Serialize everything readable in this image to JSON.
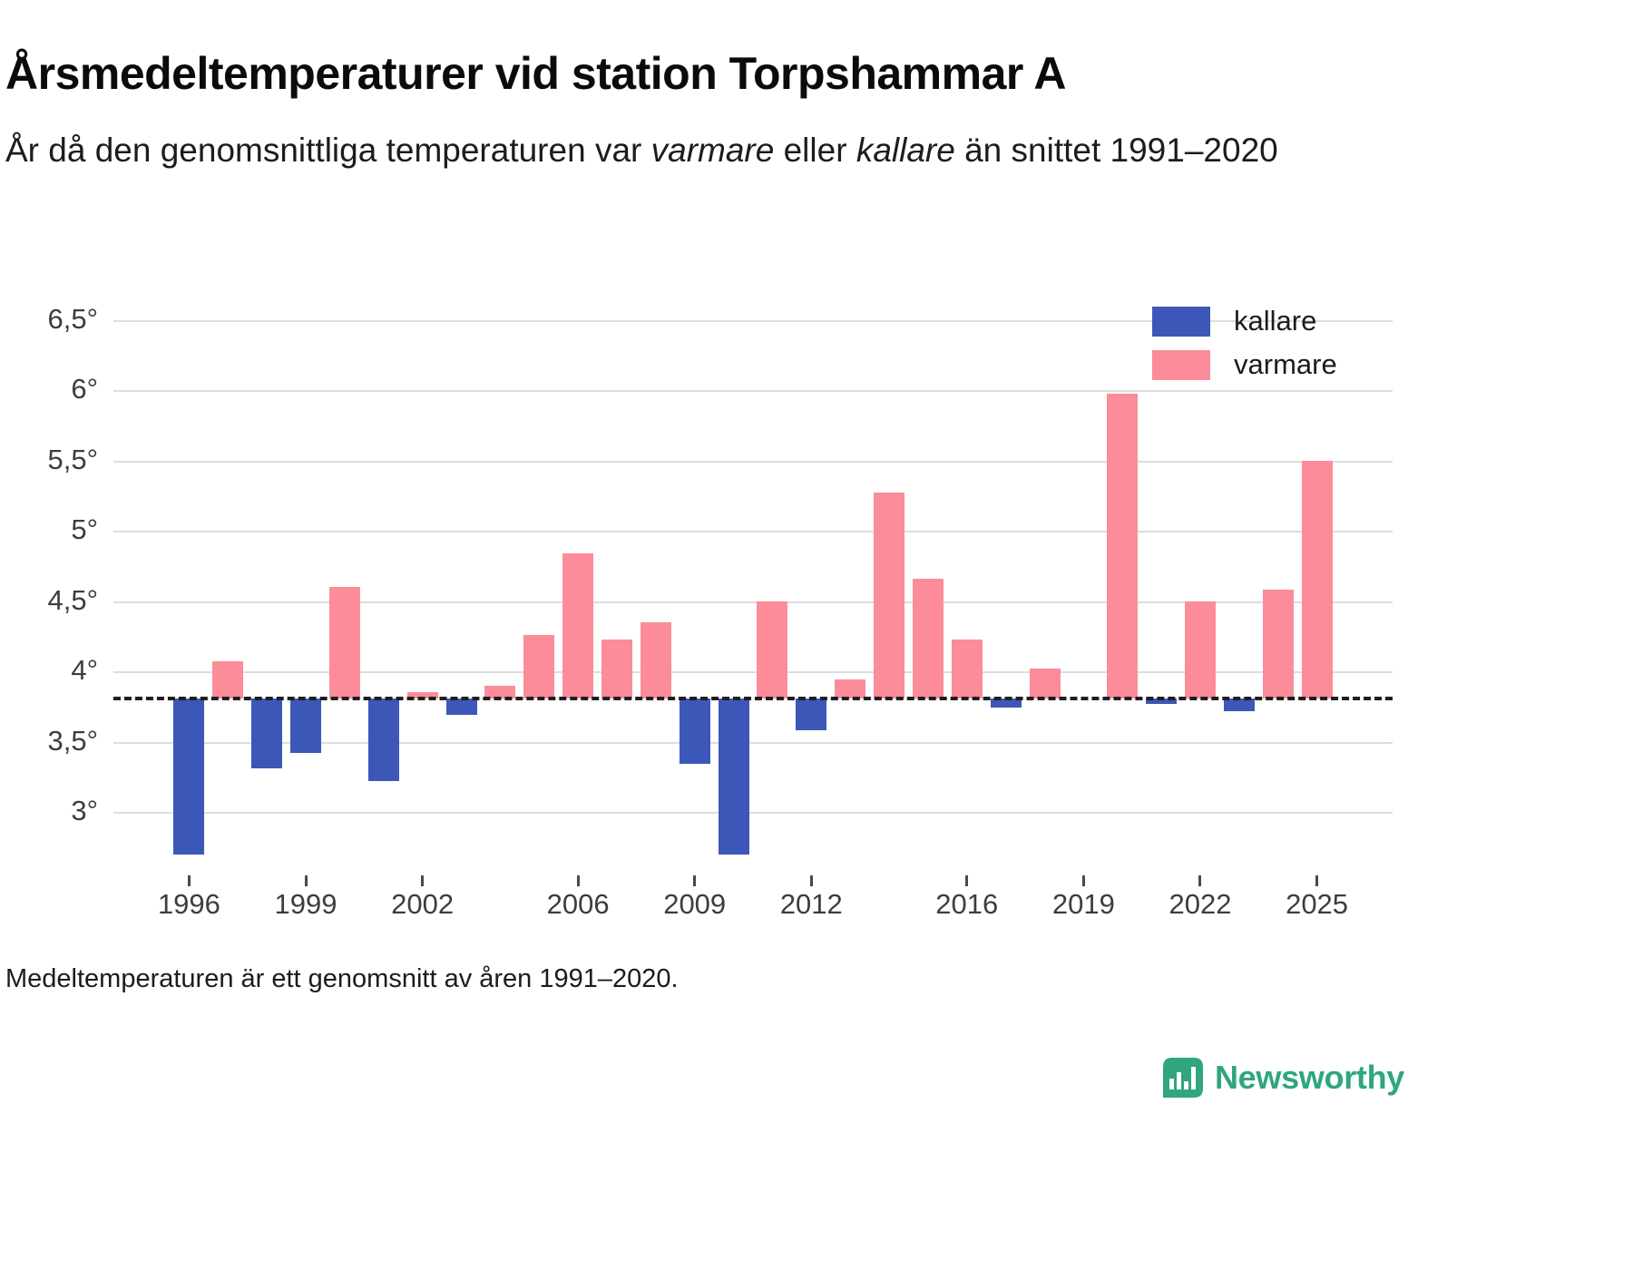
{
  "header": {
    "title": "Årsmedeltemperaturer vid station Torpshammar A",
    "subtitle_pre": "År då den genomsnittliga temperaturen var ",
    "subtitle_italic1": "varmare",
    "subtitle_mid": " eller ",
    "subtitle_italic2": "kallare",
    "subtitle_post": " än snittet 1991–2020"
  },
  "footer": {
    "note": "Medeltemperaturen är ett genomsnitt av åren 1991–2020.",
    "brand": "Newsworthy"
  },
  "colors": {
    "kallare": "#3d57b8",
    "varmare": "#fc8c99",
    "baseline": "#1f1f1f",
    "grid": "#dddddd",
    "brand_green": "#2fa67e"
  },
  "chart_data": {
    "type": "bar",
    "title": "Årsmedeltemperaturer vid station Torpshammar A",
    "ylabel": "",
    "xlabel": "",
    "unit": "°C",
    "baseline": 3.81,
    "baseline_meaning": "snittet 1991–2020",
    "ylim": [
      2.6,
      6.7
    ],
    "grid": true,
    "yticks": [
      3,
      3.5,
      4,
      4.5,
      5,
      5.5,
      6,
      6.5
    ],
    "ytick_labels": [
      "3°",
      "3,5°",
      "4°",
      "4,5°",
      "5°",
      "5,5°",
      "6°",
      "6,5°"
    ],
    "xtick_years": [
      1996,
      1999,
      2002,
      2006,
      2009,
      2012,
      2016,
      2019,
      2022,
      2025
    ],
    "years": [
      1996,
      1997,
      1998,
      1999,
      2000,
      2001,
      2002,
      2003,
      2004,
      2005,
      2006,
      2007,
      2008,
      2009,
      2010,
      2011,
      2012,
      2013,
      2014,
      2015,
      2016,
      2017,
      2018,
      2019,
      2020,
      2021,
      2022,
      2023,
      2024,
      2025
    ],
    "values": [
      2.7,
      4.07,
      3.31,
      3.42,
      4.6,
      3.22,
      3.85,
      3.69,
      3.9,
      4.26,
      4.84,
      4.23,
      4.35,
      3.34,
      2.7,
      4.5,
      3.58,
      3.94,
      5.27,
      4.66,
      4.23,
      3.74,
      4.02,
      3.81,
      5.98,
      3.77,
      4.5,
      3.72,
      4.58,
      5.5
    ],
    "series": [
      "kallare",
      "varmare",
      "kallare",
      "kallare",
      "varmare",
      "kallare",
      "varmare",
      "kallare",
      "varmare",
      "varmare",
      "varmare",
      "varmare",
      "varmare",
      "kallare",
      "kallare",
      "varmare",
      "kallare",
      "varmare",
      "varmare",
      "varmare",
      "varmare",
      "kallare",
      "varmare",
      "varmare",
      "varmare",
      "kallare",
      "varmare",
      "kallare",
      "varmare",
      "varmare"
    ],
    "legend": [
      {
        "label": "kallare"
      },
      {
        "label": "varmare"
      }
    ],
    "legend_position": "top-right"
  }
}
